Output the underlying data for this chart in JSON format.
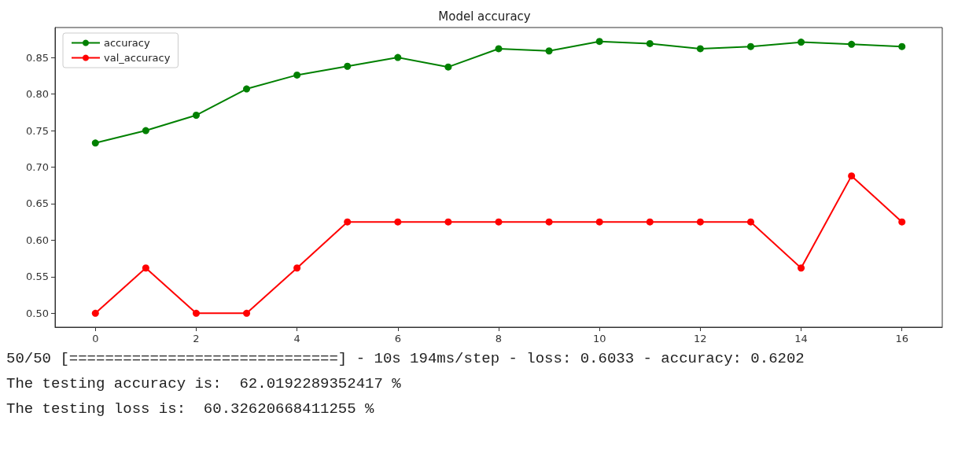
{
  "chart_data": {
    "type": "line",
    "title": "Model accuracy",
    "x": [
      0,
      1,
      2,
      3,
      4,
      5,
      6,
      7,
      8,
      9,
      10,
      11,
      12,
      13,
      14,
      15,
      16
    ],
    "series": [
      {
        "name": "accuracy",
        "color": "#008000",
        "values": [
          0.733,
          0.75,
          0.771,
          0.807,
          0.826,
          0.838,
          0.85,
          0.837,
          0.862,
          0.859,
          0.872,
          0.869,
          0.862,
          0.865,
          0.871,
          0.868,
          0.865
        ]
      },
      {
        "name": "val_accuracy",
        "color": "#ff0000",
        "values": [
          0.5,
          0.562,
          0.5,
          0.5,
          0.562,
          0.625,
          0.625,
          0.625,
          0.625,
          0.625,
          0.625,
          0.625,
          0.625,
          0.625,
          0.562,
          0.688,
          0.625
        ]
      }
    ],
    "xlim": [
      -0.8,
      16.8
    ],
    "xticks": [
      0,
      2,
      4,
      6,
      8,
      10,
      12,
      14,
      16
    ],
    "ylim": [
      0.481,
      0.891
    ],
    "yticks": [
      {
        "value": 0.5,
        "label": "0.50"
      },
      0.55,
      {
        "value": 0.6,
        "label": "0.60"
      },
      0.65,
      {
        "value": 0.7,
        "label": "0.70"
      },
      0.75,
      {
        "value": 0.8,
        "label": "0.80"
      },
      0.85
    ],
    "grid": false,
    "legend": "top left",
    "marker": "circle",
    "line_style": "solid",
    "annotations": [
      "50/50 [==============================] - 10s 194ms/step - loss: 0.6033 - accuracy: 0.6202",
      "The testing accuracy is:  62.0192289352417 %",
      "The testing loss is:  60.32620668411255 %"
    ]
  }
}
